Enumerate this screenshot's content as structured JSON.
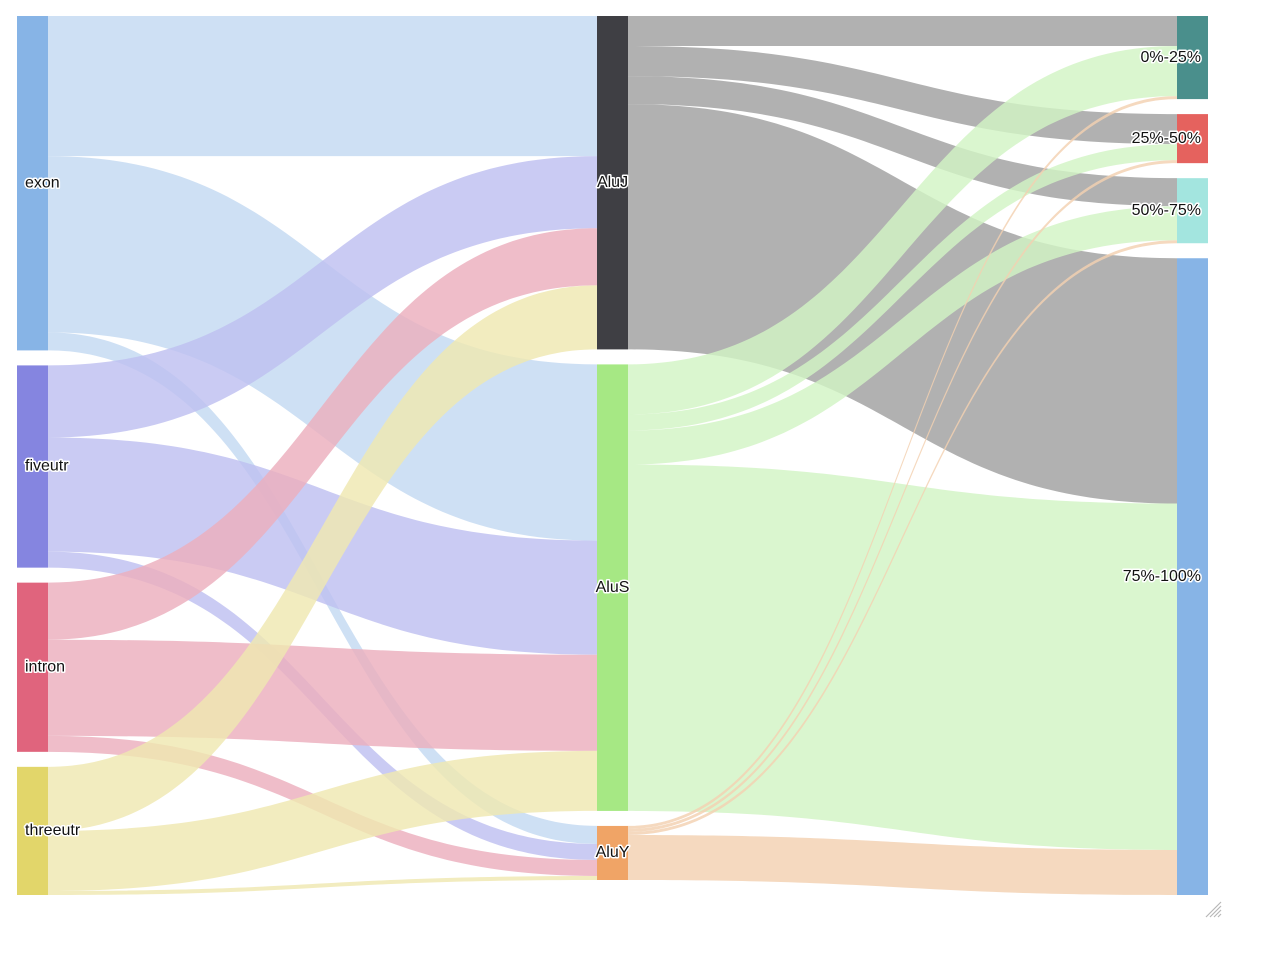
{
  "chart_data": {
    "type": "sankey",
    "title": "",
    "colors": {
      "exon": "#87b4e6",
      "fiveutr": "#8585e0",
      "intron": "#e0647d",
      "threeutr": "#e2d66a",
      "AluJ": "#3f3f44",
      "AluS": "#a6e884",
      "AluY": "#f0a466",
      "0%-25%": "#4a8f8c",
      "25%-50%": "#e5625e",
      "50%-75%": "#a3e5df",
      "75%-100%": "#87b4e6"
    },
    "link_colors": {
      "exon": "#c3d9f1",
      "fiveutr": "#bec0f0",
      "intron": "#ebaebd",
      "threeutr": "#efe8b1",
      "AluJ": "#a0a0a0",
      "AluS": "#d2f4c4",
      "AluY": "#f3d1b1"
    },
    "nodes": [
      {
        "name": "exon",
        "column": 0,
        "label": "exon"
      },
      {
        "name": "fiveutr",
        "column": 0,
        "label": "fiveutr"
      },
      {
        "name": "intron",
        "column": 0,
        "label": "intron"
      },
      {
        "name": "threeutr",
        "column": 0,
        "label": "threeutr"
      },
      {
        "name": "AluJ",
        "column": 1,
        "label": "AluJ"
      },
      {
        "name": "AluS",
        "column": 1,
        "label": "AluS"
      },
      {
        "name": "AluY",
        "column": 1,
        "label": "AluY"
      },
      {
        "name": "0%-25%",
        "column": 2,
        "label": "0%-25%"
      },
      {
        "name": "25%-50%",
        "column": 2,
        "label": "25%-50%"
      },
      {
        "name": "50%-75%",
        "column": 2,
        "label": "50%-75%"
      },
      {
        "name": "75%-100%",
        "column": 2,
        "label": "75%-100%"
      }
    ],
    "links": [
      {
        "source": "exon",
        "target": "AluJ",
        "value": 140
      },
      {
        "source": "exon",
        "target": "AluS",
        "value": 176
      },
      {
        "source": "exon",
        "target": "AluY",
        "value": 18
      },
      {
        "source": "fiveutr",
        "target": "AluJ",
        "value": 72
      },
      {
        "source": "fiveutr",
        "target": "AluS",
        "value": 114
      },
      {
        "source": "fiveutr",
        "target": "AluY",
        "value": 16
      },
      {
        "source": "intron",
        "target": "AluJ",
        "value": 57
      },
      {
        "source": "intron",
        "target": "AluS",
        "value": 96
      },
      {
        "source": "intron",
        "target": "AluY",
        "value": 16
      },
      {
        "source": "threeutr",
        "target": "AluJ",
        "value": 64
      },
      {
        "source": "threeutr",
        "target": "AluS",
        "value": 60
      },
      {
        "source": "threeutr",
        "target": "AluY",
        "value": 4
      },
      {
        "source": "AluJ",
        "target": "0%-25%",
        "value": 30
      },
      {
        "source": "AluJ",
        "target": "25%-50%",
        "value": 30
      },
      {
        "source": "AluJ",
        "target": "50%-75%",
        "value": 28
      },
      {
        "source": "AluJ",
        "target": "75%-100%",
        "value": 245
      },
      {
        "source": "AluS",
        "target": "0%-25%",
        "value": 50
      },
      {
        "source": "AluS",
        "target": "25%-50%",
        "value": 16
      },
      {
        "source": "AluS",
        "target": "50%-75%",
        "value": 34
      },
      {
        "source": "AluS",
        "target": "75%-100%",
        "value": 346
      },
      {
        "source": "AluY",
        "target": "0%-25%",
        "value": 3
      },
      {
        "source": "AluY",
        "target": "25%-50%",
        "value": 3
      },
      {
        "source": "AluY",
        "target": "50%-75%",
        "value": 3
      },
      {
        "source": "AluY",
        "target": "75%-100%",
        "value": 45
      }
    ]
  }
}
